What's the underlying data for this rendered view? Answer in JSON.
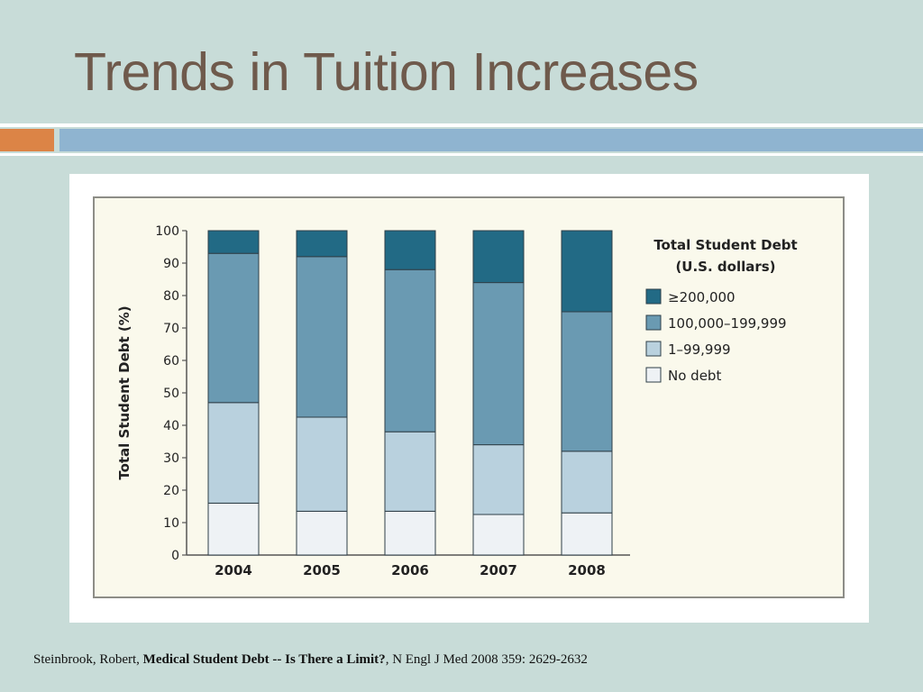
{
  "slide": {
    "title": "Trends in Tuition Increases",
    "citation": {
      "author": "Steinbrook, Robert, ",
      "article": "Medical Student Debt -- Is There a Limit?",
      "journal": ", N Engl J Med 2008 359: 2629-2632"
    }
  },
  "colors": {
    "background": "#c8dcd8",
    "title_text": "#6f5a4c",
    "accent_orange": "#dc8446",
    "accent_blue": "#8fb4d0"
  },
  "chart_data": {
    "type": "bar",
    "stacked": true,
    "ylabel": "Total Student Debt (%)",
    "xlabel": "",
    "ylim": [
      0,
      100
    ],
    "yticks": [
      "0",
      "10",
      "20",
      "30",
      "40",
      "50",
      "60",
      "70",
      "80",
      "90",
      "100"
    ],
    "categories": [
      "2004",
      "2005",
      "2006",
      "2007",
      "2008"
    ],
    "legend": {
      "title_line1": "Total Student Debt",
      "title_line2": "(U.S. dollars)",
      "placement": "right"
    },
    "series": [
      {
        "name": "No debt",
        "color": "#eef2f5",
        "values": [
          16,
          13.5,
          13.5,
          12.5,
          13
        ]
      },
      {
        "name": "1–99,999",
        "color": "#b9d1de",
        "values": [
          31,
          29,
          24.5,
          21.5,
          19
        ]
      },
      {
        "name": "100,000–199,999",
        "color": "#6a9ab2",
        "values": [
          46,
          49.5,
          50,
          50,
          43
        ]
      },
      {
        "name": "≥200,000",
        "color": "#226a85",
        "values": [
          7,
          8,
          12,
          16,
          25
        ]
      }
    ],
    "grid": false
  }
}
